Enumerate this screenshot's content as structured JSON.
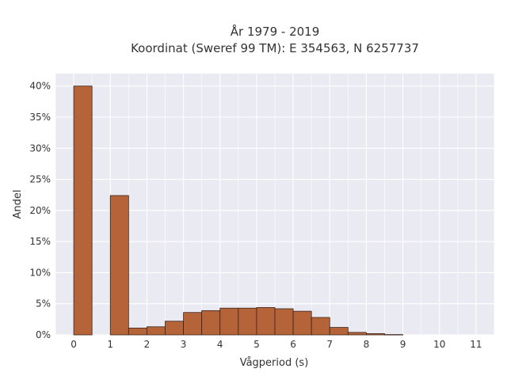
{
  "chart_data": {
    "type": "bar",
    "title": "År 1979 - 2019",
    "subtitle": "Koordinat (Sweref 99 TM): E 354563, N 6257737",
    "xlabel": "Vågperiod (s)",
    "ylabel": "Andel",
    "xlim": [
      -0.5,
      11.5
    ],
    "ylim": [
      0,
      0.42
    ],
    "grid": true,
    "bar_width": 0.5,
    "bar_color": "#b5643a",
    "bar_edge_color": "#3a2418",
    "background_color": "#eaeaf2",
    "grid_color": "#ffffff",
    "x": [
      0,
      0.5,
      1,
      1.5,
      2,
      2.5,
      3,
      3.5,
      4,
      4.5,
      5,
      5.5,
      6,
      6.5,
      7,
      7.5,
      8,
      8.5,
      9,
      9.5,
      10,
      10.5,
      11
    ],
    "values": [
      0.4,
      0.0,
      0.224,
      0.011,
      0.013,
      0.022,
      0.036,
      0.039,
      0.043,
      0.043,
      0.044,
      0.042,
      0.038,
      0.028,
      0.012,
      0.004,
      0.002,
      0.0005,
      0.0,
      0.0,
      0.0,
      0.0,
      0.0
    ],
    "xticks": [
      0,
      1,
      2,
      3,
      4,
      5,
      6,
      7,
      8,
      9,
      10,
      11
    ],
    "xtick_labels": [
      "0",
      "1",
      "2",
      "3",
      "4",
      "5",
      "6",
      "7",
      "8",
      "9",
      "10",
      "11"
    ],
    "yticks": [
      0,
      0.05,
      0.1,
      0.15,
      0.2,
      0.25,
      0.3,
      0.35,
      0.4
    ],
    "ytick_labels": [
      "0%",
      "5%",
      "10%",
      "15%",
      "20%",
      "25%",
      "30%",
      "35%",
      "40%"
    ]
  }
}
